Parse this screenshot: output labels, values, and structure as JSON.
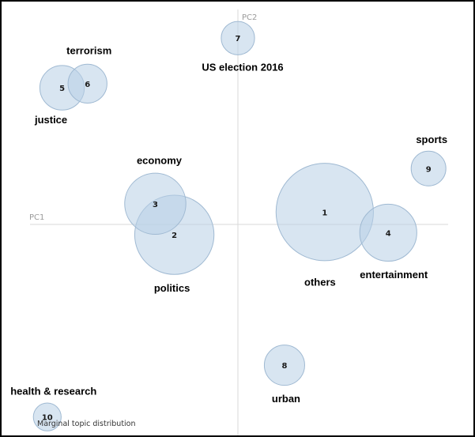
{
  "chart_data": {
    "type": "scatter",
    "xlabel": "PC1",
    "ylabel": "PC2",
    "footer": "Marginal topic distribution",
    "xlim": [
      -1,
      1
    ],
    "ylim": [
      -1,
      1
    ],
    "grid": false,
    "points": [
      {
        "id": "1",
        "x": 0.41,
        "y": 0.06,
        "size": 0.14,
        "label": "others"
      },
      {
        "id": "2",
        "x": -0.3,
        "y": -0.05,
        "size": 0.114,
        "label": "politics"
      },
      {
        "id": "3",
        "x": -0.39,
        "y": 0.1,
        "size": 0.088,
        "label": "economy"
      },
      {
        "id": "4",
        "x": 0.71,
        "y": -0.04,
        "size": 0.082,
        "label": "entertainment"
      },
      {
        "id": "5",
        "x": -0.83,
        "y": 0.66,
        "size": 0.064,
        "label": "justice"
      },
      {
        "id": "6",
        "x": -0.71,
        "y": 0.68,
        "size": 0.056,
        "label": "terrorism"
      },
      {
        "id": "7",
        "x": 0.0,
        "y": 0.9,
        "size": 0.048,
        "label": "US election 2016"
      },
      {
        "id": "8",
        "x": 0.22,
        "y": -0.68,
        "size": 0.058,
        "label": "urban"
      },
      {
        "id": "9",
        "x": 0.9,
        "y": 0.27,
        "size": 0.05,
        "label": "sports"
      },
      {
        "id": "10",
        "x": -0.9,
        "y": -0.93,
        "size": 0.04,
        "label": "health & research"
      }
    ]
  }
}
